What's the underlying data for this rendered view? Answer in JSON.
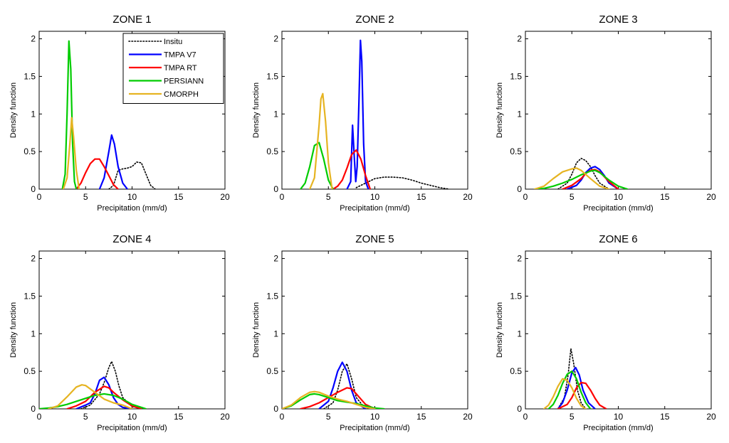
{
  "chart_data": {
    "type": "line",
    "series_styles": [
      {
        "name": "Insitu",
        "color": "#000000",
        "dash": "dotted"
      },
      {
        "name": "TMPA V7",
        "color": "#0000ff",
        "dash": "solid"
      },
      {
        "name": "TMPA RT",
        "color": "#ff0000",
        "dash": "solid"
      },
      {
        "name": "PERSIANN",
        "color": "#00cc00",
        "dash": "solid"
      },
      {
        "name": "CMORPH",
        "color": "#e6b422",
        "dash": "solid"
      }
    ],
    "legend": {
      "placement": "top-right",
      "panel": 0,
      "entries": [
        "Insitu",
        "TMPA V7",
        "TMPA RT",
        "PERSIANN",
        "CMORPH"
      ]
    },
    "panels": [
      {
        "title": "ZONE 1",
        "xlabel": "Precipitation (mm/d)",
        "ylabel": "Density function",
        "xlim": [
          0,
          20
        ],
        "ylim": [
          0,
          2.1
        ],
        "xticks": [
          0,
          5,
          10,
          15,
          20
        ],
        "xtick_labels": [
          "0",
          "5",
          "10",
          "15",
          "20"
        ],
        "yticks": [
          0,
          0.5,
          1,
          1.5,
          2
        ],
        "ytick_labels": [
          "0",
          "0.5",
          "1",
          "1.5",
          "2"
        ],
        "series": [
          {
            "name": "Insitu",
            "x": [
              7.5,
              8.0,
              8.5,
              9.0,
              9.5,
              10.0,
              10.5,
              11.0,
              11.5,
              12.0,
              12.5
            ],
            "y": [
              0,
              0.05,
              0.25,
              0.27,
              0.28,
              0.3,
              0.36,
              0.35,
              0.2,
              0.05,
              0
            ]
          },
          {
            "name": "TMPA V7",
            "x": [
              6.5,
              7.0,
              7.5,
              7.8,
              8.1,
              8.5,
              9.0,
              9.5
            ],
            "y": [
              0,
              0.15,
              0.5,
              0.72,
              0.6,
              0.3,
              0.08,
              0
            ]
          },
          {
            "name": "TMPA RT",
            "x": [
              4.0,
              4.5,
              5.0,
              5.5,
              6.0,
              6.5,
              7.0,
              7.5,
              8.0,
              8.5
            ],
            "y": [
              0,
              0.08,
              0.22,
              0.34,
              0.4,
              0.4,
              0.3,
              0.18,
              0.06,
              0
            ]
          },
          {
            "name": "PERSIANN",
            "x": [
              2.5,
              2.8,
              3.0,
              3.2,
              3.4,
              3.6,
              3.8,
              4.0
            ],
            "y": [
              0,
              0.2,
              1.0,
              1.97,
              1.6,
              0.6,
              0.1,
              0
            ]
          },
          {
            "name": "CMORPH",
            "x": [
              2.6,
              3.0,
              3.3,
              3.5,
              3.7,
              4.0,
              4.3
            ],
            "y": [
              0,
              0.15,
              0.6,
              0.95,
              0.7,
              0.25,
              0
            ]
          }
        ]
      },
      {
        "title": "ZONE 2",
        "xlabel": "Precipitation (mm/d)",
        "ylabel": "Density function",
        "xlim": [
          0,
          20
        ],
        "ylim": [
          0,
          2.1
        ],
        "xticks": [
          0,
          5,
          10,
          15,
          20
        ],
        "xtick_labels": [
          "0",
          "5",
          "10",
          "15",
          "20"
        ],
        "yticks": [
          0,
          0.5,
          1,
          1.5,
          2
        ],
        "ytick_labels": [
          "0",
          "0.5",
          "1",
          "1.5",
          "2"
        ],
        "series": [
          {
            "name": "Insitu",
            "x": [
              8.0,
              9.0,
              10.0,
              11.0,
              12.0,
              13.0,
              14.0,
              15.0,
              16.0,
              17.0,
              18.0
            ],
            "y": [
              0.02,
              0.08,
              0.14,
              0.16,
              0.16,
              0.15,
              0.12,
              0.08,
              0.05,
              0.02,
              0
            ]
          },
          {
            "name": "TMPA V7",
            "x": [
              7.0,
              7.4,
              7.6,
              7.8,
              7.95,
              8.1,
              8.3,
              8.45,
              8.6,
              8.8,
              9.0,
              9.3
            ],
            "y": [
              0,
              0.1,
              0.85,
              0.4,
              0.1,
              0.3,
              1.2,
              1.98,
              1.7,
              0.6,
              0.1,
              0
            ]
          },
          {
            "name": "TMPA RT",
            "x": [
              5.5,
              6.0,
              6.5,
              7.0,
              7.5,
              8.0,
              8.5,
              9.0,
              9.5
            ],
            "y": [
              0,
              0.04,
              0.12,
              0.28,
              0.46,
              0.52,
              0.4,
              0.18,
              0
            ]
          },
          {
            "name": "PERSIANN",
            "x": [
              2.0,
              2.5,
              3.0,
              3.5,
              4.0,
              4.5,
              5.0,
              5.5
            ],
            "y": [
              0,
              0.08,
              0.3,
              0.58,
              0.62,
              0.4,
              0.12,
              0
            ]
          },
          {
            "name": "CMORPH",
            "x": [
              3.0,
              3.5,
              4.0,
              4.2,
              4.4,
              4.7,
              5.0,
              5.4
            ],
            "y": [
              0,
              0.15,
              0.85,
              1.2,
              1.27,
              0.9,
              0.35,
              0
            ]
          }
        ]
      },
      {
        "title": "ZONE 3",
        "xlabel": "Precipitation (mm/d)",
        "ylabel": "Density function",
        "xlim": [
          0,
          20
        ],
        "ylim": [
          0,
          2.1
        ],
        "xticks": [
          0,
          5,
          10,
          15,
          20
        ],
        "xtick_labels": [
          "0",
          "5",
          "10",
          "15",
          "20"
        ],
        "yticks": [
          0,
          0.5,
          1,
          1.5,
          2
        ],
        "ytick_labels": [
          "0",
          "0.5",
          "1",
          "1.5",
          "2"
        ],
        "series": [
          {
            "name": "Insitu",
            "x": [
              3.5,
              4.5,
              5.0,
              5.5,
              6.0,
              6.5,
              7.0,
              7.5,
              8.0,
              9.0
            ],
            "y": [
              0,
              0.08,
              0.2,
              0.35,
              0.41,
              0.38,
              0.3,
              0.18,
              0.08,
              0
            ]
          },
          {
            "name": "TMPA V7",
            "x": [
              4.5,
              5.5,
              6.0,
              6.5,
              7.0,
              7.5,
              8.0,
              8.5,
              9.0,
              10.0
            ],
            "y": [
              0,
              0.05,
              0.12,
              0.22,
              0.28,
              0.3,
              0.26,
              0.18,
              0.08,
              0
            ]
          },
          {
            "name": "TMPA RT",
            "x": [
              4.0,
              5.0,
              6.0,
              6.5,
              7.0,
              7.5,
              8.0,
              9.0,
              10.0
            ],
            "y": [
              0,
              0.05,
              0.14,
              0.21,
              0.25,
              0.26,
              0.23,
              0.1,
              0
            ]
          },
          {
            "name": "PERSIANN",
            "x": [
              1.0,
              2.0,
              3.0,
              4.0,
              5.0,
              6.0,
              7.0,
              7.5,
              8.0,
              9.0,
              10.0,
              11.0
            ],
            "y": [
              0,
              0.01,
              0.04,
              0.08,
              0.13,
              0.19,
              0.24,
              0.25,
              0.22,
              0.12,
              0.04,
              0
            ]
          },
          {
            "name": "CMORPH",
            "x": [
              1.0,
              2.0,
              3.0,
              4.0,
              5.0,
              5.5,
              6.0,
              7.0,
              8.0,
              9.0
            ],
            "y": [
              0,
              0.04,
              0.14,
              0.23,
              0.27,
              0.28,
              0.25,
              0.14,
              0.04,
              0
            ]
          }
        ]
      },
      {
        "title": "ZONE 4",
        "xlabel": "Precipitation (mm/d)",
        "ylabel": "Density function",
        "xlim": [
          0,
          20
        ],
        "ylim": [
          0,
          2.1
        ],
        "xticks": [
          0,
          5,
          10,
          15,
          20
        ],
        "xtick_labels": [
          "0",
          "5",
          "10",
          "15",
          "20"
        ],
        "yticks": [
          0,
          0.5,
          1,
          1.5,
          2
        ],
        "ytick_labels": [
          "0",
          "0.5",
          "1",
          "1.5",
          "2"
        ],
        "series": [
          {
            "name": "Insitu",
            "x": [
              4.5,
              5.5,
              6.5,
              7.0,
              7.5,
              7.8,
              8.2,
              8.6,
              9.0,
              10.0,
              11.0
            ],
            "y": [
              0,
              0.05,
              0.2,
              0.35,
              0.55,
              0.63,
              0.5,
              0.3,
              0.15,
              0.03,
              0
            ]
          },
          {
            "name": "TMPA V7",
            "x": [
              4.0,
              5.0,
              5.5,
              6.0,
              6.5,
              7.0,
              7.5,
              8.0,
              8.5,
              9.0,
              10.0
            ],
            "y": [
              0,
              0.05,
              0.08,
              0.2,
              0.38,
              0.42,
              0.32,
              0.15,
              0.06,
              0.02,
              0
            ]
          },
          {
            "name": "TMPA RT",
            "x": [
              3.0,
              4.0,
              5.0,
              6.0,
              7.0,
              7.5,
              8.0,
              9.0,
              10.0,
              11.0
            ],
            "y": [
              0,
              0.04,
              0.1,
              0.22,
              0.3,
              0.28,
              0.22,
              0.12,
              0.04,
              0
            ]
          },
          {
            "name": "PERSIANN",
            "x": [
              0.0,
              1.0,
              2.0,
              3.0,
              4.0,
              5.0,
              6.0,
              7.0,
              8.0,
              9.0,
              10.0,
              11.0,
              11.5
            ],
            "y": [
              0,
              0.01,
              0.03,
              0.06,
              0.1,
              0.14,
              0.18,
              0.2,
              0.18,
              0.13,
              0.06,
              0.02,
              0
            ]
          },
          {
            "name": "CMORPH",
            "x": [
              1.0,
              2.0,
              3.0,
              4.0,
              4.6,
              5.0,
              6.0,
              7.0,
              8.0,
              9.0,
              10.0
            ],
            "y": [
              0,
              0.04,
              0.16,
              0.29,
              0.32,
              0.31,
              0.22,
              0.13,
              0.08,
              0.05,
              0
            ]
          }
        ]
      },
      {
        "title": "ZONE 5",
        "xlabel": "Precipitation (mm/d)",
        "ylabel": "Density function",
        "xlim": [
          0,
          20
        ],
        "ylim": [
          0,
          2.1
        ],
        "xticks": [
          0,
          5,
          10,
          15,
          20
        ],
        "xtick_labels": [
          "0",
          "5",
          "10",
          "15",
          "20"
        ],
        "yticks": [
          0,
          0.5,
          1,
          1.5,
          2
        ],
        "ytick_labels": [
          "0",
          "0.5",
          "1",
          "1.5",
          "2"
        ],
        "series": [
          {
            "name": "Insitu",
            "x": [
              4.5,
              5.5,
              6.0,
              6.5,
              7.0,
              7.5,
              8.0,
              9.0
            ],
            "y": [
              0,
              0.08,
              0.25,
              0.5,
              0.6,
              0.4,
              0.15,
              0
            ]
          },
          {
            "name": "TMPA V7",
            "x": [
              4.0,
              5.0,
              5.5,
              6.0,
              6.5,
              7.0,
              7.5,
              8.0,
              9.0
            ],
            "y": [
              0,
              0.1,
              0.28,
              0.5,
              0.62,
              0.5,
              0.25,
              0.08,
              0
            ]
          },
          {
            "name": "TMPA RT",
            "x": [
              2.0,
              3.0,
              4.0,
              5.0,
              6.0,
              7.0,
              7.5,
              8.0,
              9.0,
              10.0
            ],
            "y": [
              0,
              0.03,
              0.08,
              0.15,
              0.22,
              0.28,
              0.27,
              0.2,
              0.06,
              0
            ]
          },
          {
            "name": "PERSIANN",
            "x": [
              0.0,
              1.0,
              2.0,
              3.0,
              3.5,
              4.0,
              5.0,
              6.0,
              7.0,
              8.0,
              9.0,
              10.0,
              11.0
            ],
            "y": [
              0,
              0.04,
              0.12,
              0.19,
              0.2,
              0.19,
              0.15,
              0.11,
              0.09,
              0.07,
              0.04,
              0.01,
              0
            ]
          },
          {
            "name": "CMORPH",
            "x": [
              0.0,
              1.0,
              2.0,
              3.0,
              3.5,
              4.0,
              5.0,
              6.0,
              7.0,
              8.0,
              9.0,
              10.0
            ],
            "y": [
              0,
              0.05,
              0.15,
              0.22,
              0.23,
              0.22,
              0.17,
              0.13,
              0.1,
              0.06,
              0.02,
              0
            ]
          }
        ]
      },
      {
        "title": "ZONE 6",
        "xlabel": "Precipitation (mm/d)",
        "ylabel": "Density function",
        "xlim": [
          0,
          20
        ],
        "ylim": [
          0,
          2.1
        ],
        "xticks": [
          0,
          5,
          10,
          15,
          20
        ],
        "xtick_labels": [
          "0",
          "5",
          "10",
          "15",
          "20"
        ],
        "yticks": [
          0,
          0.5,
          1,
          1.5,
          2
        ],
        "ytick_labels": [
          "0",
          "0.5",
          "1",
          "1.5",
          "2"
        ],
        "series": [
          {
            "name": "Insitu",
            "x": [
              3.5,
              4.2,
              4.6,
              4.9,
              5.2,
              5.6,
              6.0,
              6.5
            ],
            "y": [
              0,
              0.15,
              0.45,
              0.8,
              0.6,
              0.25,
              0.08,
              0
            ]
          },
          {
            "name": "TMPA V7",
            "x": [
              3.5,
              4.0,
              4.5,
              5.0,
              5.4,
              5.8,
              6.2,
              6.8,
              7.5
            ],
            "y": [
              0,
              0.08,
              0.25,
              0.48,
              0.55,
              0.45,
              0.25,
              0.08,
              0
            ]
          },
          {
            "name": "TMPA RT",
            "x": [
              3.5,
              4.5,
              5.0,
              5.5,
              6.0,
              6.5,
              7.0,
              7.5,
              8.0,
              8.7
            ],
            "y": [
              0,
              0.06,
              0.15,
              0.28,
              0.35,
              0.34,
              0.25,
              0.14,
              0.05,
              0
            ]
          },
          {
            "name": "PERSIANN",
            "x": [
              2.5,
              3.0,
              3.5,
              4.0,
              4.5,
              5.0,
              5.5,
              6.0,
              6.5,
              7.0
            ],
            "y": [
              0,
              0.06,
              0.18,
              0.34,
              0.46,
              0.5,
              0.4,
              0.22,
              0.08,
              0
            ]
          },
          {
            "name": "CMORPH",
            "x": [
              2.0,
              2.5,
              3.0,
              3.5,
              4.0,
              4.5,
              5.0,
              5.5,
              6.0,
              6.5
            ],
            "y": [
              0,
              0.05,
              0.16,
              0.3,
              0.4,
              0.38,
              0.28,
              0.14,
              0.04,
              0
            ]
          }
        ]
      }
    ]
  }
}
